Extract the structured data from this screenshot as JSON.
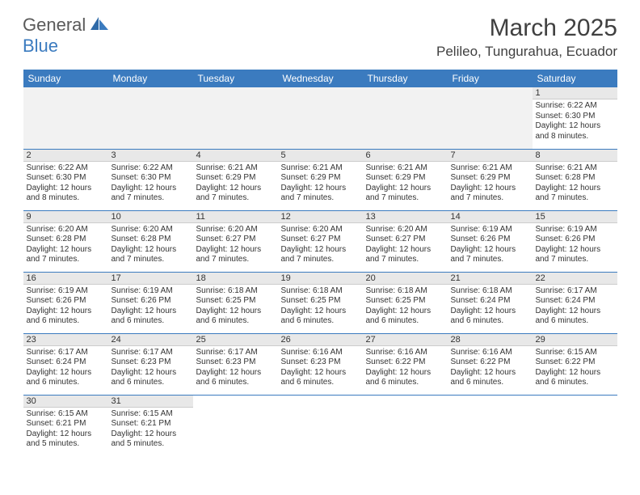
{
  "brand": {
    "name1": "General",
    "name2": "Blue"
  },
  "title": "March 2025",
  "location": "Pelileo, Tungurahua, Ecuador",
  "colors": {
    "header_bg": "#3b7bbf",
    "daynum_bg": "#e8e8e8",
    "text": "#333333"
  },
  "weekdays": [
    "Sunday",
    "Monday",
    "Tuesday",
    "Wednesday",
    "Thursday",
    "Friday",
    "Saturday"
  ],
  "weeks": [
    [
      null,
      null,
      null,
      null,
      null,
      null,
      {
        "n": "1",
        "sr": "Sunrise: 6:22 AM",
        "ss": "Sunset: 6:30 PM",
        "d1": "Daylight: 12 hours",
        "d2": "and 8 minutes."
      }
    ],
    [
      {
        "n": "2",
        "sr": "Sunrise: 6:22 AM",
        "ss": "Sunset: 6:30 PM",
        "d1": "Daylight: 12 hours",
        "d2": "and 8 minutes."
      },
      {
        "n": "3",
        "sr": "Sunrise: 6:22 AM",
        "ss": "Sunset: 6:30 PM",
        "d1": "Daylight: 12 hours",
        "d2": "and 7 minutes."
      },
      {
        "n": "4",
        "sr": "Sunrise: 6:21 AM",
        "ss": "Sunset: 6:29 PM",
        "d1": "Daylight: 12 hours",
        "d2": "and 7 minutes."
      },
      {
        "n": "5",
        "sr": "Sunrise: 6:21 AM",
        "ss": "Sunset: 6:29 PM",
        "d1": "Daylight: 12 hours",
        "d2": "and 7 minutes."
      },
      {
        "n": "6",
        "sr": "Sunrise: 6:21 AM",
        "ss": "Sunset: 6:29 PM",
        "d1": "Daylight: 12 hours",
        "d2": "and 7 minutes."
      },
      {
        "n": "7",
        "sr": "Sunrise: 6:21 AM",
        "ss": "Sunset: 6:29 PM",
        "d1": "Daylight: 12 hours",
        "d2": "and 7 minutes."
      },
      {
        "n": "8",
        "sr": "Sunrise: 6:21 AM",
        "ss": "Sunset: 6:28 PM",
        "d1": "Daylight: 12 hours",
        "d2": "and 7 minutes."
      }
    ],
    [
      {
        "n": "9",
        "sr": "Sunrise: 6:20 AM",
        "ss": "Sunset: 6:28 PM",
        "d1": "Daylight: 12 hours",
        "d2": "and 7 minutes."
      },
      {
        "n": "10",
        "sr": "Sunrise: 6:20 AM",
        "ss": "Sunset: 6:28 PM",
        "d1": "Daylight: 12 hours",
        "d2": "and 7 minutes."
      },
      {
        "n": "11",
        "sr": "Sunrise: 6:20 AM",
        "ss": "Sunset: 6:27 PM",
        "d1": "Daylight: 12 hours",
        "d2": "and 7 minutes."
      },
      {
        "n": "12",
        "sr": "Sunrise: 6:20 AM",
        "ss": "Sunset: 6:27 PM",
        "d1": "Daylight: 12 hours",
        "d2": "and 7 minutes."
      },
      {
        "n": "13",
        "sr": "Sunrise: 6:20 AM",
        "ss": "Sunset: 6:27 PM",
        "d1": "Daylight: 12 hours",
        "d2": "and 7 minutes."
      },
      {
        "n": "14",
        "sr": "Sunrise: 6:19 AM",
        "ss": "Sunset: 6:26 PM",
        "d1": "Daylight: 12 hours",
        "d2": "and 7 minutes."
      },
      {
        "n": "15",
        "sr": "Sunrise: 6:19 AM",
        "ss": "Sunset: 6:26 PM",
        "d1": "Daylight: 12 hours",
        "d2": "and 7 minutes."
      }
    ],
    [
      {
        "n": "16",
        "sr": "Sunrise: 6:19 AM",
        "ss": "Sunset: 6:26 PM",
        "d1": "Daylight: 12 hours",
        "d2": "and 6 minutes."
      },
      {
        "n": "17",
        "sr": "Sunrise: 6:19 AM",
        "ss": "Sunset: 6:26 PM",
        "d1": "Daylight: 12 hours",
        "d2": "and 6 minutes."
      },
      {
        "n": "18",
        "sr": "Sunrise: 6:18 AM",
        "ss": "Sunset: 6:25 PM",
        "d1": "Daylight: 12 hours",
        "d2": "and 6 minutes."
      },
      {
        "n": "19",
        "sr": "Sunrise: 6:18 AM",
        "ss": "Sunset: 6:25 PM",
        "d1": "Daylight: 12 hours",
        "d2": "and 6 minutes."
      },
      {
        "n": "20",
        "sr": "Sunrise: 6:18 AM",
        "ss": "Sunset: 6:25 PM",
        "d1": "Daylight: 12 hours",
        "d2": "and 6 minutes."
      },
      {
        "n": "21",
        "sr": "Sunrise: 6:18 AM",
        "ss": "Sunset: 6:24 PM",
        "d1": "Daylight: 12 hours",
        "d2": "and 6 minutes."
      },
      {
        "n": "22",
        "sr": "Sunrise: 6:17 AM",
        "ss": "Sunset: 6:24 PM",
        "d1": "Daylight: 12 hours",
        "d2": "and 6 minutes."
      }
    ],
    [
      {
        "n": "23",
        "sr": "Sunrise: 6:17 AM",
        "ss": "Sunset: 6:24 PM",
        "d1": "Daylight: 12 hours",
        "d2": "and 6 minutes."
      },
      {
        "n": "24",
        "sr": "Sunrise: 6:17 AM",
        "ss": "Sunset: 6:23 PM",
        "d1": "Daylight: 12 hours",
        "d2": "and 6 minutes."
      },
      {
        "n": "25",
        "sr": "Sunrise: 6:17 AM",
        "ss": "Sunset: 6:23 PM",
        "d1": "Daylight: 12 hours",
        "d2": "and 6 minutes."
      },
      {
        "n": "26",
        "sr": "Sunrise: 6:16 AM",
        "ss": "Sunset: 6:23 PM",
        "d1": "Daylight: 12 hours",
        "d2": "and 6 minutes."
      },
      {
        "n": "27",
        "sr": "Sunrise: 6:16 AM",
        "ss": "Sunset: 6:22 PM",
        "d1": "Daylight: 12 hours",
        "d2": "and 6 minutes."
      },
      {
        "n": "28",
        "sr": "Sunrise: 6:16 AM",
        "ss": "Sunset: 6:22 PM",
        "d1": "Daylight: 12 hours",
        "d2": "and 6 minutes."
      },
      {
        "n": "29",
        "sr": "Sunrise: 6:15 AM",
        "ss": "Sunset: 6:22 PM",
        "d1": "Daylight: 12 hours",
        "d2": "and 6 minutes."
      }
    ],
    [
      {
        "n": "30",
        "sr": "Sunrise: 6:15 AM",
        "ss": "Sunset: 6:21 PM",
        "d1": "Daylight: 12 hours",
        "d2": "and 5 minutes."
      },
      {
        "n": "31",
        "sr": "Sunrise: 6:15 AM",
        "ss": "Sunset: 6:21 PM",
        "d1": "Daylight: 12 hours",
        "d2": "and 5 minutes."
      },
      null,
      null,
      null,
      null,
      null
    ]
  ]
}
